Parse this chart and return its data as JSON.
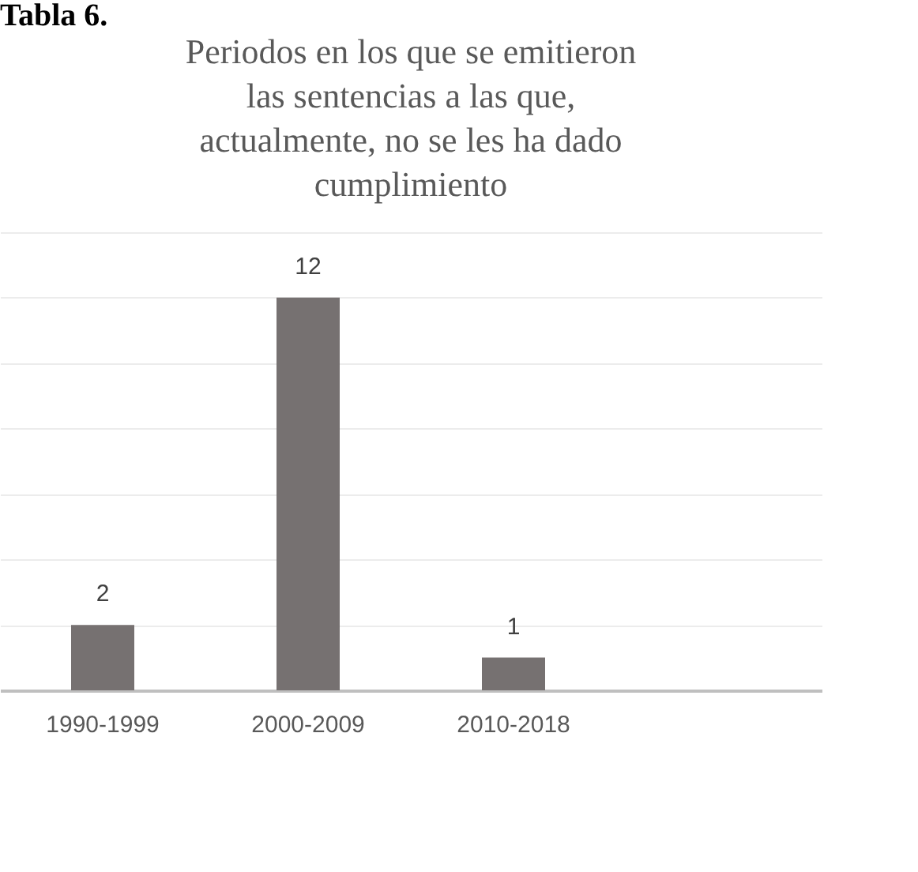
{
  "chart_data": {
    "type": "bar",
    "title": "Periodos en los que se emitieron las sentencias a las que, actualmente, no se les ha dado cumplimiento",
    "annotations": [
      "Tabla 6."
    ],
    "categories": [
      "1990-1999",
      "2000-2009",
      "2010-2018",
      null
    ],
    "values": [
      2,
      12,
      1,
      null
    ],
    "color": "#767171",
    "ylim": [
      0,
      14
    ],
    "yticks": [
      {
        "value": 0,
        "label": null
      },
      {
        "value": 2,
        "label": null
      },
      {
        "value": 4,
        "label": null
      },
      {
        "value": 6,
        "label": null
      },
      {
        "value": 8,
        "label": null
      },
      {
        "value": 10,
        "label": null
      },
      {
        "value": 12,
        "label": null
      },
      {
        "value": 14,
        "label": null
      }
    ],
    "tick_labels": "x",
    "grid": "y",
    "data_labels": true
  }
}
